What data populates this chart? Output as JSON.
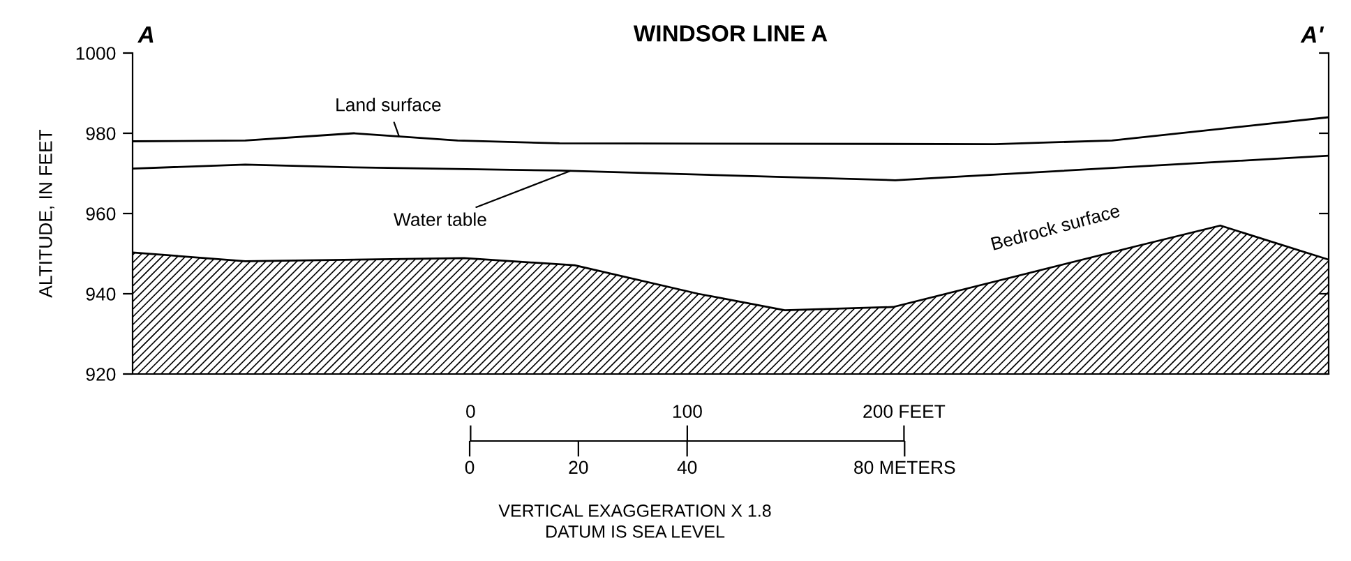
{
  "chart_data": {
    "type": "line",
    "title": "WINDSOR LINE A",
    "ylabel": "ALTITUDE, IN FEET",
    "annotations": [
      "A",
      "A'",
      "VERTICAL EXAGGERATION X 1.8",
      "DATUM IS SEA LEVEL"
    ],
    "series": [
      {
        "name": "Land surface",
        "color": "#000000",
        "x": [
          -156,
          -104,
          -54,
          -6,
          41,
          242,
          296,
          396
        ],
        "values": [
          978,
          978.2,
          980,
          978.2,
          977.5,
          977.3,
          978.2,
          984
        ]
      },
      {
        "name": "Water table",
        "color": "#000000",
        "x": [
          -156,
          -104,
          -54,
          41,
          196,
          396
        ],
        "values": [
          971.2,
          972.2,
          971.5,
          970.7,
          968.3,
          974.4
        ]
      },
      {
        "name": "Bedrock surface",
        "type": "area",
        "color": "#000000",
        "x": [
          -156,
          -104,
          -3,
          48,
          105,
          145,
          195,
          306,
          346,
          396
        ],
        "values": [
          950.3,
          948.1,
          948.9,
          947.1,
          940,
          935.9,
          936.7,
          951.7,
          957,
          948.5
        ]
      }
    ],
    "xlim": [
      -156,
      396
    ],
    "xticks": [
      0,
      100,
      {
        "value": 200,
        "label": "200 FEET"
      }
    ],
    "x2lim": [
      -62,
      158
    ],
    "x2ticks": [
      0,
      20,
      40,
      {
        "value": 80,
        "label": "80 METERS"
      }
    ],
    "ylim": [
      920,
      1000
    ],
    "yticks": [
      920,
      940,
      960,
      980,
      1000
    ],
    "grid": false,
    "legend": false,
    "marker": "none",
    "line_style": "solid"
  }
}
